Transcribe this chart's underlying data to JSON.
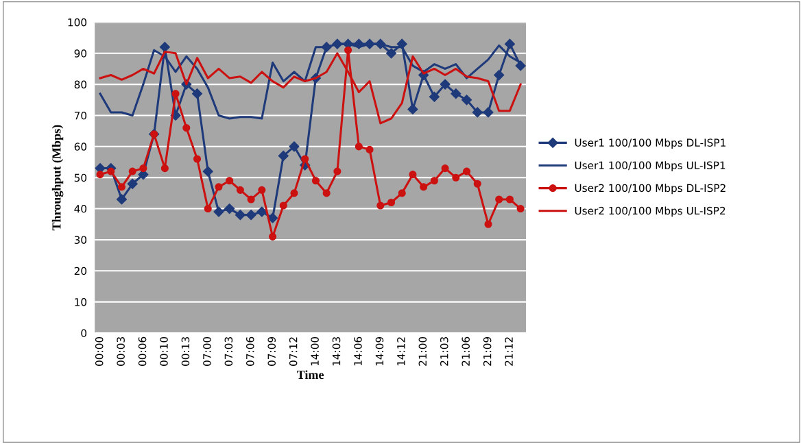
{
  "chart_data": {
    "type": "line",
    "xlabel": "Time",
    "ylabel": "Throughput (Mbps)",
    "categories": [
      "00:00",
      null,
      "00:03",
      null,
      "00:06",
      null,
      "00:10",
      null,
      "00:13",
      null,
      "07:00",
      null,
      "07:03",
      null,
      "07:06",
      null,
      "07:09",
      null,
      "07:12",
      null,
      "14:00",
      null,
      "14:03",
      null,
      "14:06",
      null,
      "14:09",
      null,
      "14:12",
      null,
      "21:00",
      null,
      "21:03",
      null,
      "21:06",
      null,
      "21:09",
      null,
      "21:12",
      null
    ],
    "series": [
      {
        "name": "User1 100/100 Mbps DL-ISP1",
        "color": "#1f3a7a",
        "marker": "diamond",
        "values": [
          53,
          53,
          43,
          48,
          51,
          64,
          92,
          70,
          80,
          77,
          52,
          39,
          40,
          38,
          38,
          39,
          37,
          57,
          60,
          54,
          82,
          92,
          93,
          93,
          93,
          93,
          93,
          90,
          93,
          72,
          83,
          76,
          80,
          77,
          75,
          71,
          71,
          83,
          93,
          86
        ]
      },
      {
        "name": "User1 100/100 Mbps UL-ISP1",
        "color": "#1f3a7a",
        "marker": "none",
        "values": [
          77,
          71,
          71,
          70,
          80,
          91,
          89,
          84,
          89,
          85,
          79,
          70,
          69,
          69.5,
          69.5,
          69,
          87,
          81,
          84,
          81,
          92,
          92,
          93,
          93,
          92,
          93,
          93,
          92,
          92,
          86,
          84,
          86.5,
          85,
          86.5,
          82,
          85,
          88,
          92.5,
          89,
          87
        ]
      },
      {
        "name": "User2 100/100 Mbps DL-ISP2",
        "color": "#cc1111",
        "marker": "circle",
        "values": [
          51,
          52,
          47,
          52,
          53,
          64,
          53,
          77,
          66,
          56,
          40,
          47,
          49,
          46,
          43,
          46,
          31,
          41,
          45,
          56,
          49,
          45,
          52,
          91,
          60,
          59,
          41,
          42,
          45,
          51,
          47,
          49,
          53,
          50,
          52,
          48,
          35,
          43,
          43,
          40
        ]
      },
      {
        "name": "User2 100/100 Mbps UL-ISP2",
        "color": "#cc1111",
        "marker": "none",
        "values": [
          82,
          83,
          81.5,
          83,
          85,
          83.5,
          90.5,
          90,
          80,
          88.5,
          82,
          85,
          82,
          82.5,
          80.5,
          84,
          81,
          79,
          82.5,
          81,
          82,
          84,
          90,
          84,
          77.5,
          81,
          67.5,
          69,
          74,
          89,
          83.5,
          85,
          83,
          85,
          82.5,
          82,
          81,
          71.5,
          71.5,
          80
        ]
      }
    ],
    "ylim": [
      0,
      100
    ],
    "yticks": [
      0,
      10,
      20,
      30,
      40,
      50,
      60,
      70,
      80,
      90,
      100
    ],
    "grid": "y",
    "legend": "right",
    "line_style": "solid"
  }
}
